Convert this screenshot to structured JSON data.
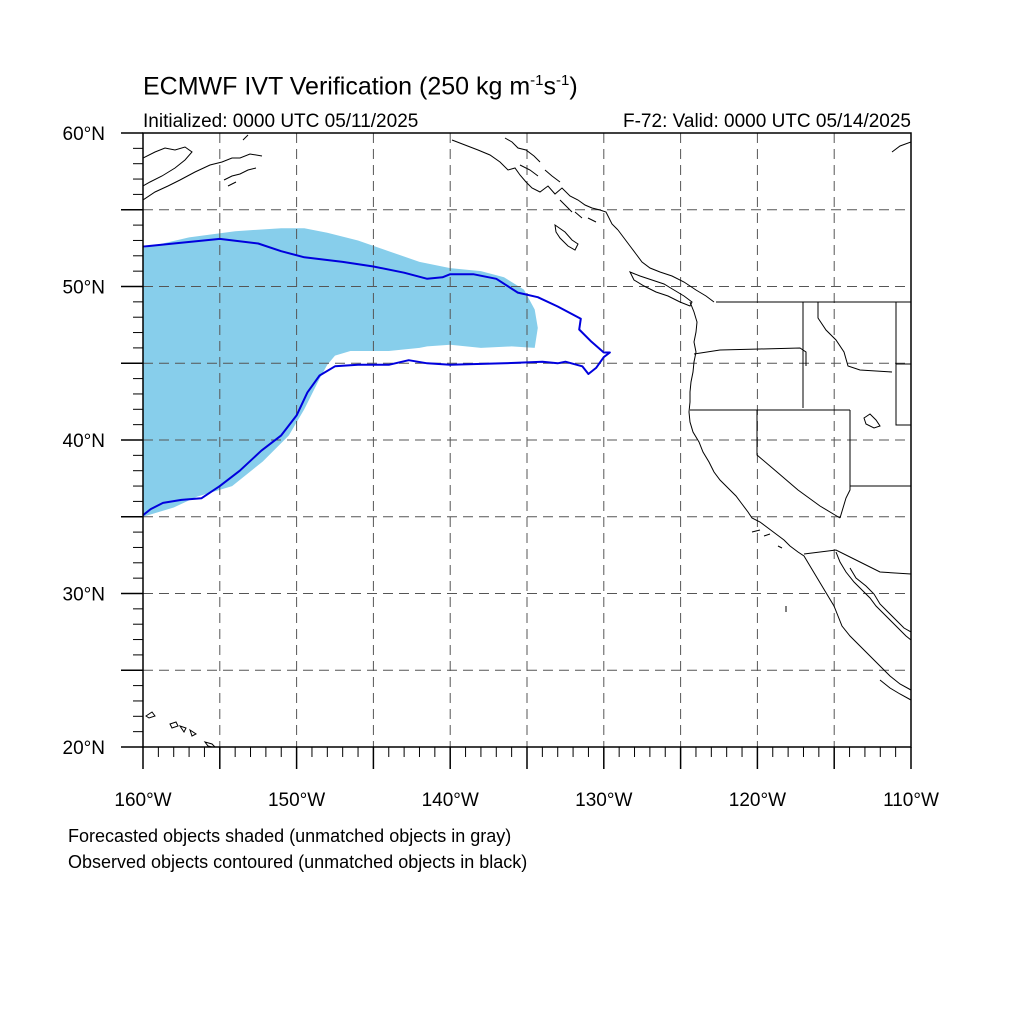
{
  "title": {
    "main": "ECMWF IVT Verification (250 kg m",
    "sup1": "-1",
    "mid": "s",
    "sup2": "-1",
    "end": ")"
  },
  "subtitle": {
    "initialized": "Initialized: 0000 UTC 05/11/2025",
    "valid": "F-72: Valid: 0000 UTC 05/14/2025"
  },
  "notes": {
    "forecast": "Forecasted objects shaded (unmatched objects in gray)",
    "observed": "Observed objects contoured (unmatched objects in black)"
  },
  "map": {
    "lon_range": [
      -160,
      -110
    ],
    "lat_range": [
      20,
      60
    ],
    "lat_labels": [
      {
        "lat": 60,
        "text": "60°N"
      },
      {
        "lat": 50,
        "text": "50°N"
      },
      {
        "lat": 40,
        "text": "40°N"
      },
      {
        "lat": 30,
        "text": "30°N"
      },
      {
        "lat": 20,
        "text": "20°N"
      }
    ],
    "lon_labels": [
      {
        "lon": -160,
        "text": "160°W"
      },
      {
        "lon": -150,
        "text": "150°W"
      },
      {
        "lon": -140,
        "text": "140°W"
      },
      {
        "lon": -130,
        "text": "130°W"
      },
      {
        "lon": -120,
        "text": "120°W"
      },
      {
        "lon": -110,
        "text": "110°W"
      }
    ],
    "gridlines_lat": [
      25,
      30,
      35,
      40,
      45,
      50,
      55
    ],
    "gridlines_lon": [
      -155,
      -150,
      -145,
      -140,
      -135,
      -130,
      -125,
      -120,
      -115
    ],
    "colors": {
      "forecast_fill": "#87ceeb",
      "observed_contour": "#0000dd",
      "coastline": "#000000",
      "grid": "#555555"
    },
    "forecast_object": [
      [
        -160,
        52.5
      ],
      [
        -157,
        53.2
      ],
      [
        -154,
        53.6
      ],
      [
        -151,
        53.8
      ],
      [
        -149.5,
        53.8
      ],
      [
        -148,
        53.5
      ],
      [
        -146,
        53.0
      ],
      [
        -144,
        52.3
      ],
      [
        -142,
        51.6
      ],
      [
        -140,
        51.2
      ],
      [
        -138,
        51.0
      ],
      [
        -136.5,
        50.6
      ],
      [
        -135.2,
        49.8
      ],
      [
        -134.5,
        48.5
      ],
      [
        -134.3,
        47.3
      ],
      [
        -134.5,
        46.0
      ],
      [
        -136,
        46.1
      ],
      [
        -138,
        46.0
      ],
      [
        -140,
        46.2
      ],
      [
        -141.5,
        46.1
      ],
      [
        -142,
        46.0
      ],
      [
        -144,
        45.8
      ],
      [
        -146.5,
        45.8
      ],
      [
        -147.5,
        45.5
      ],
      [
        -148,
        44.9
      ],
      [
        -148.5,
        44.0
      ],
      [
        -149.5,
        42.0
      ],
      [
        -150.5,
        40.3
      ],
      [
        -152.2,
        38.6
      ],
      [
        -154.2,
        37.0
      ],
      [
        -156.5,
        36.3
      ],
      [
        -158,
        35.6
      ],
      [
        -160,
        35.0
      ]
    ],
    "observed_contour": [
      [
        -160,
        52.6
      ],
      [
        -158,
        52.8
      ],
      [
        -155,
        53.1
      ],
      [
        -152.5,
        52.8
      ],
      [
        -151,
        52.3
      ],
      [
        -149.5,
        51.9
      ],
      [
        -147,
        51.6
      ],
      [
        -145,
        51.3
      ],
      [
        -143,
        50.9
      ],
      [
        -141.5,
        50.5
      ],
      [
        -140.5,
        50.6
      ],
      [
        -140,
        50.8
      ],
      [
        -138.5,
        50.8
      ],
      [
        -137,
        50.5
      ],
      [
        -135.6,
        49.6
      ],
      [
        -134.3,
        49.3
      ],
      [
        -133,
        48.7
      ],
      [
        -131.5,
        47.9
      ],
      [
        -131.6,
        47.2
      ],
      [
        -130.8,
        46.4
      ],
      [
        -130.0,
        45.7
      ],
      [
        -129.6,
        45.7
      ],
      [
        -130.0,
        45.4
      ],
      [
        -130.5,
        44.7
      ],
      [
        -131.0,
        44.3
      ],
      [
        -131.4,
        44.8
      ],
      [
        -132.5,
        45.1
      ],
      [
        -133.0,
        45.0
      ],
      [
        -134.0,
        45.1
      ],
      [
        -136.5,
        45.0
      ],
      [
        -140,
        44.9
      ],
      [
        -141.5,
        45.0
      ],
      [
        -142.7,
        45.2
      ],
      [
        -144,
        44.9
      ],
      [
        -146,
        44.9
      ],
      [
        -147.5,
        44.8
      ],
      [
        -148.5,
        44.2
      ],
      [
        -149.3,
        43.1
      ],
      [
        -150,
        41.6
      ],
      [
        -151.0,
        40.3
      ],
      [
        -152.3,
        39.3
      ],
      [
        -153.7,
        38.0
      ],
      [
        -155.0,
        37.0
      ],
      [
        -156.2,
        36.2
      ],
      [
        -157.5,
        36.1
      ],
      [
        -158.7,
        35.9
      ],
      [
        -159.5,
        35.5
      ],
      [
        -160,
        35.1
      ]
    ]
  }
}
